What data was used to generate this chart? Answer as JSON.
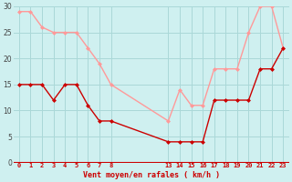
{
  "xlabel": "Vent moyen/en rafales ( km/h )",
  "background_color": "#cff0f0",
  "grid_color": "#aad8d8",
  "x_ticks_positions": [
    0,
    1,
    2,
    3,
    4,
    5,
    6,
    7,
    8,
    13,
    14,
    15,
    16,
    17,
    18,
    19,
    20,
    21,
    22,
    23
  ],
  "x_ticks_labels": [
    "0",
    "1",
    "2",
    "3",
    "4",
    "5",
    "6",
    "7",
    "8",
    "13",
    "14",
    "15",
    "16",
    "17",
    "18",
    "19",
    "20",
    "21",
    "22",
    "23"
  ],
  "ylim": [
    0,
    30
  ],
  "yticks": [
    0,
    5,
    10,
    15,
    20,
    25,
    30
  ],
  "mean_x": [
    0,
    1,
    2,
    3,
    4,
    5,
    6,
    7,
    8,
    13,
    14,
    15,
    16,
    17,
    18,
    19,
    20,
    21,
    22,
    23
  ],
  "mean_y": [
    15,
    15,
    15,
    12,
    15,
    15,
    11,
    8,
    8,
    4,
    4,
    4,
    4,
    12,
    12,
    12,
    12,
    18,
    18,
    22
  ],
  "gust_x": [
    0,
    1,
    2,
    3,
    4,
    5,
    6,
    7,
    8,
    13,
    14,
    15,
    16,
    17,
    18,
    19,
    20,
    21,
    22,
    23
  ],
  "gust_y": [
    29,
    29,
    26,
    25,
    25,
    25,
    22,
    19,
    15,
    8,
    14,
    11,
    11,
    18,
    18,
    18,
    25,
    30,
    30,
    22
  ],
  "mean_color": "#cc0000",
  "gust_color": "#ff9999",
  "line_width": 1.0,
  "marker_size": 2.5,
  "xlabel_color": "#cc0000",
  "tick_color": "#cc0000",
  "xlabel_fontsize": 6.0,
  "xtick_fontsize": 5.0,
  "ytick_fontsize": 5.5
}
